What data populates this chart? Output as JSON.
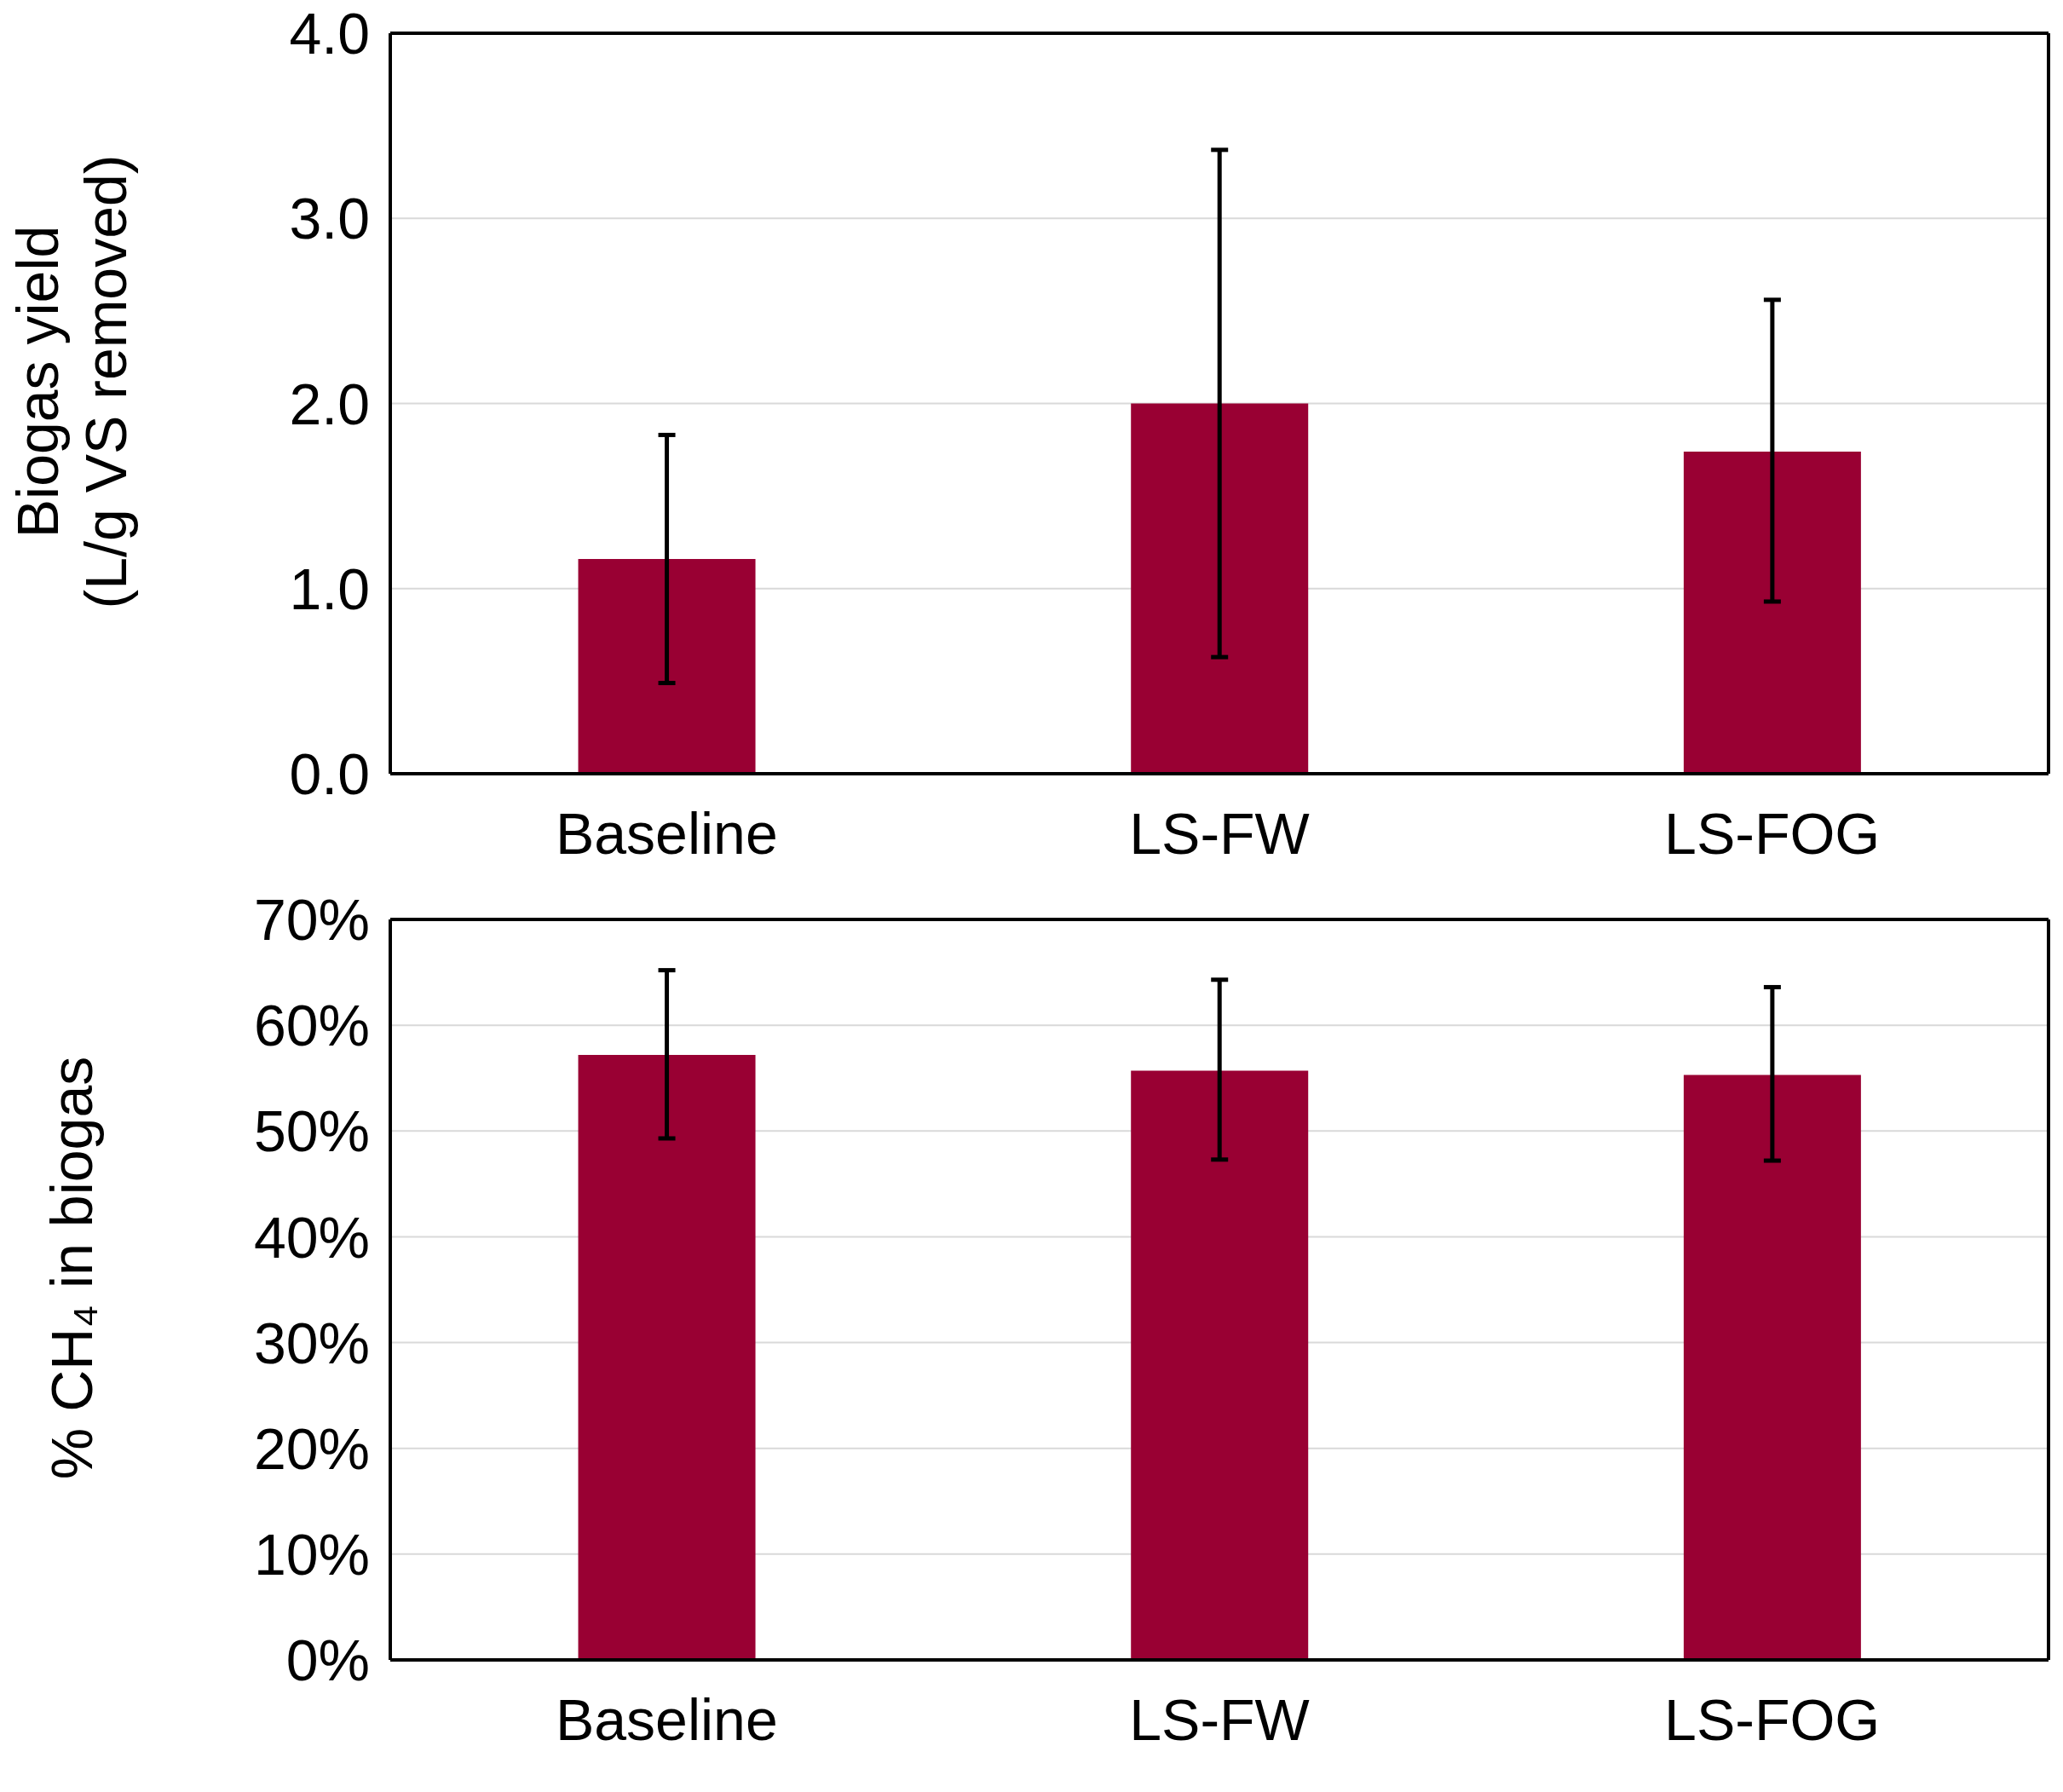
{
  "chart_data": [
    {
      "type": "bar",
      "ylabel": "Biogas yield\n(L/g VS removed)",
      "categories": [
        "Baseline",
        "LS-FW",
        "LS-FOG"
      ],
      "values": [
        1.16,
        2.0,
        1.74
      ],
      "color": "#990033",
      "errors": [
        [
          0.49,
          1.83
        ],
        [
          0.63,
          3.37
        ],
        [
          0.93,
          2.56
        ]
      ],
      "ylim": [
        0,
        4
      ],
      "yticks": [
        {
          "value": 0,
          "label": "0.0"
        },
        {
          "value": 1,
          "label": "1.0"
        },
        {
          "value": 2,
          "label": "2.0"
        },
        {
          "value": 3,
          "label": "3.0"
        },
        {
          "value": 4,
          "label": "4.0"
        }
      ],
      "grid": "y"
    },
    {
      "type": "bar",
      "ylabel": "% CH₄ in biogas",
      "categories": [
        "Baseline",
        "LS-FW",
        "LS-FOG"
      ],
      "values": [
        57.2,
        55.7,
        55.3
      ],
      "color": "#990033",
      "errors": [
        [
          49.3,
          65.2
        ],
        [
          47.3,
          64.3
        ],
        [
          47.2,
          63.6
        ]
      ],
      "ylim": [
        0,
        70
      ],
      "yticks": [
        {
          "value": 0,
          "label": "0%"
        },
        {
          "value": 10,
          "label": "10%"
        },
        {
          "value": 20,
          "label": "20%"
        },
        {
          "value": 30,
          "label": "30%"
        },
        {
          "value": 40,
          "label": "40%"
        },
        {
          "value": 50,
          "label": "50%"
        },
        {
          "value": 60,
          "label": "60%"
        },
        {
          "value": 70,
          "label": "70%"
        }
      ],
      "grid": "y"
    }
  ]
}
